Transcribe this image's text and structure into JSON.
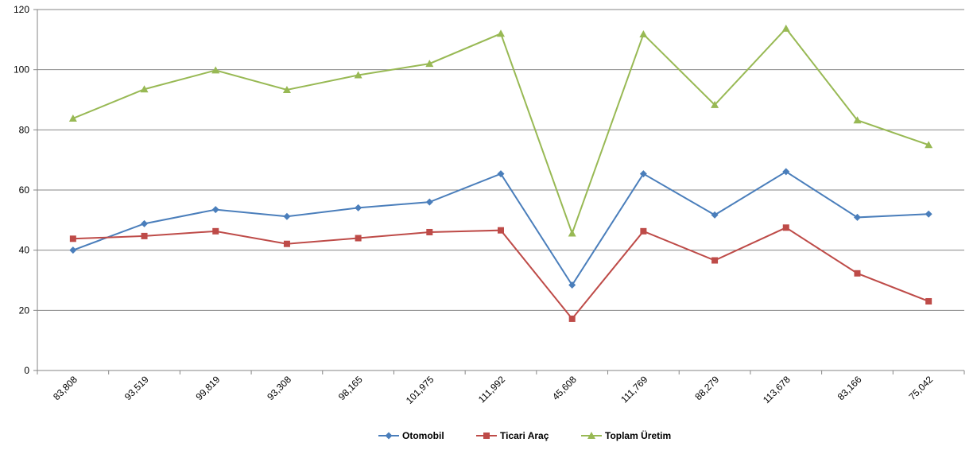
{
  "chart_data": {
    "type": "line",
    "categories": [
      "83,808",
      "93,519",
      "99,819",
      "93,308",
      "98,165",
      "101,975",
      "111,992",
      "45,608",
      "111,769",
      "88,279",
      "113,678",
      "83,166",
      "75,042"
    ],
    "ylim": [
      0,
      120
    ],
    "yticks": [
      0,
      20,
      40,
      60,
      80,
      100,
      120
    ],
    "grid": true,
    "legend_position": "bottom",
    "series": [
      {
        "name": "Otomobil",
        "color": "#4a7ebb",
        "marker": "diamond",
        "values": [
          40.0,
          48.8,
          53.5,
          51.2,
          54.1,
          56.0,
          65.4,
          28.4,
          65.4,
          51.7,
          66.1,
          50.9,
          52.0
        ]
      },
      {
        "name": "Ticari Araç",
        "color": "#be4b48",
        "marker": "square",
        "values": [
          43.8,
          44.7,
          46.3,
          42.1,
          44.0,
          46.0,
          46.6,
          17.2,
          46.3,
          36.6,
          47.5,
          32.3,
          23.0
        ]
      },
      {
        "name": "Toplam Üretim",
        "color": "#98b954",
        "marker": "triangle",
        "values": [
          83.8,
          93.5,
          99.8,
          93.3,
          98.2,
          102.0,
          112.0,
          45.6,
          111.8,
          88.3,
          113.7,
          83.2,
          75.0
        ]
      }
    ]
  }
}
